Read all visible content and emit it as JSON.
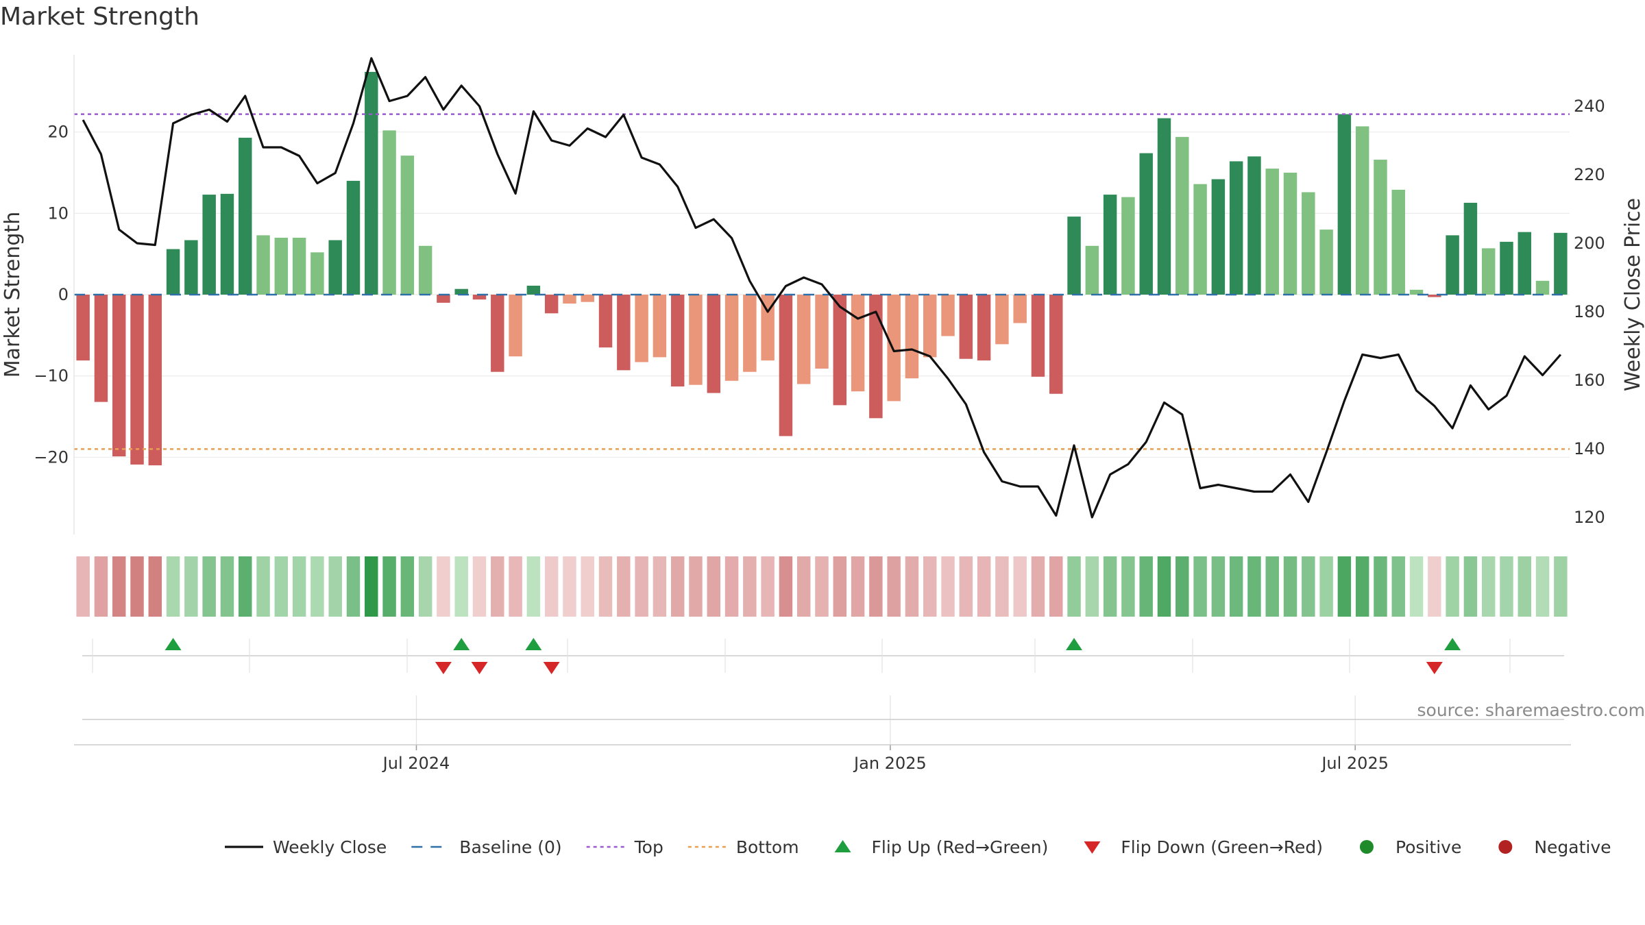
{
  "chart_data": {
    "type": "bar",
    "title": "Market Strength",
    "source": "source: sharemaestro.com",
    "ylabel_left": "Market Strength",
    "ylabel_right": "Weekly Close Price",
    "ylim_left": [
      -29.5,
      29.5
    ],
    "ylim_right": [
      115,
      255
    ],
    "left_ticks": [
      20,
      10,
      0,
      -10,
      -20
    ],
    "left_tick_labels": [
      "20",
      "10",
      "0",
      "−10",
      "−20"
    ],
    "right_ticks": [
      240,
      220,
      200,
      180,
      160,
      140,
      120
    ],
    "right_tick_labels": [
      "240",
      "220",
      "200",
      "180",
      "160",
      "140",
      "120"
    ],
    "x_tick_labels": [
      "Jul 2024",
      "Jan 2025",
      "Jul 2025"
    ],
    "x_tick_indices": [
      18.5,
      44.8,
      70.6
    ],
    "top_line": 22.2,
    "bottom_line": -19.0,
    "grid": true,
    "legend_position": "bottom",
    "legend": [
      {
        "label": "Weekly Close",
        "kind": "line",
        "color": "#111111"
      },
      {
        "label": "Baseline (0)",
        "kind": "dashed",
        "color": "#2e6fa8"
      },
      {
        "label": "Top",
        "kind": "dotted",
        "color": "#9b59d0"
      },
      {
        "label": "Bottom",
        "kind": "dotted",
        "color": "#e8a050"
      },
      {
        "label": "Flip Up (Red→Green)",
        "kind": "up",
        "color": "#1e9e3e"
      },
      {
        "label": "Flip Down (Green→Red)",
        "kind": "down",
        "color": "#d62728"
      },
      {
        "label": "Positive",
        "kind": "dot",
        "color": "#1f8a2a"
      },
      {
        "label": "Negative",
        "kind": "dot",
        "color": "#b22222"
      }
    ],
    "colors": {
      "pos_strong": "#2e8b57",
      "pos_light": "#80c080",
      "neg_strong": "#cd5c5c",
      "neg_light": "#e9967a",
      "close_line": "#111111",
      "baseline": "#2e6fa8",
      "top": "#9b59d0",
      "bottom": "#e8a050",
      "flip_up": "#1e9e3e",
      "flip_down": "#d62728"
    },
    "strength": [
      -8.1,
      -13.2,
      -19.9,
      -20.9,
      -21.0,
      5.6,
      6.7,
      12.3,
      12.4,
      19.3,
      7.3,
      7.0,
      7.0,
      5.2,
      6.7,
      14.0,
      27.4,
      20.2,
      17.1,
      6.0,
      -1.0,
      0.7,
      -0.6,
      -9.5,
      -7.6,
      1.1,
      -2.3,
      -1.1,
      -0.9,
      -6.5,
      -9.3,
      -8.3,
      -7.7,
      -11.3,
      -11.1,
      -12.1,
      -10.6,
      -9.5,
      -8.1,
      -17.4,
      -11.0,
      -9.1,
      -13.6,
      -11.9,
      -15.2,
      -13.1,
      -10.3,
      -7.7,
      -5.1,
      -7.9,
      -8.1,
      -6.1,
      -3.5,
      -10.1,
      -12.2,
      9.6,
      6.0,
      12.3,
      12.0,
      17.4,
      21.7,
      19.4,
      13.6,
      14.2,
      16.4,
      17.0,
      15.5,
      15.0,
      12.6,
      8.0,
      22.2,
      20.7,
      16.6,
      12.9,
      0.6,
      -0.3,
      7.3,
      11.3,
      5.7,
      6.5,
      7.7,
      1.7,
      7.6
    ],
    "strength_shade": [
      "s",
      "s",
      "s",
      "s",
      "s",
      "s",
      "s",
      "s",
      "s",
      "s",
      "l",
      "l",
      "l",
      "l",
      "s",
      "s",
      "s",
      "l",
      "l",
      "l",
      "s",
      "s",
      "s",
      "s",
      "l",
      "s",
      "s",
      "l",
      "l",
      "s",
      "s",
      "l",
      "l",
      "s",
      "l",
      "s",
      "l",
      "l",
      "l",
      "s",
      "l",
      "l",
      "s",
      "l",
      "s",
      "l",
      "l",
      "l",
      "l",
      "s",
      "s",
      "l",
      "l",
      "s",
      "s",
      "s",
      "l",
      "s",
      "l",
      "s",
      "s",
      "l",
      "l",
      "s",
      "s",
      "s",
      "l",
      "l",
      "l",
      "l",
      "s",
      "l",
      "l",
      "l",
      "l",
      "s",
      "s",
      "s",
      "l",
      "s",
      "s",
      "l",
      "s"
    ],
    "weekly_close": [
      236,
      226,
      204,
      200,
      199.5,
      235,
      237.5,
      239,
      235.5,
      243,
      228,
      228,
      225.5,
      217.5,
      220.5,
      235,
      254,
      241.5,
      243,
      248.5,
      239,
      246,
      240,
      226,
      214.5,
      238.5,
      230,
      228.5,
      233.5,
      231,
      237.5,
      225,
      223,
      216.5,
      204.5,
      207,
      201.5,
      189,
      180,
      187.5,
      190,
      188,
      181.5,
      178,
      180,
      168.5,
      169,
      167,
      160.5,
      153,
      139,
      130.5,
      129,
      129,
      120.5,
      141,
      120,
      132.5,
      135.5,
      142,
      153.5,
      150,
      128.5,
      129.5,
      128.5,
      127.5,
      127.5,
      132.5,
      124.5,
      139,
      154,
      167.5,
      166.5,
      167.5,
      157,
      152.5,
      146,
      158.5,
      151.5,
      155.5,
      167,
      161.5,
      167.5
    ],
    "heat_strip": [
      -8,
      -13,
      -20,
      -21,
      -21,
      5.6,
      6.7,
      12.3,
      12.4,
      19.3,
      7.3,
      7,
      7,
      5.2,
      6.7,
      14,
      27.4,
      20.2,
      17.1,
      6,
      -2,
      2,
      -2,
      -9.5,
      -7.6,
      2,
      -3,
      -2,
      -2,
      -6.5,
      -9.3,
      -8.3,
      -7.7,
      -11.3,
      -11.1,
      -12.1,
      -10.6,
      -9.5,
      -8.1,
      -17.4,
      -11,
      -9.1,
      -13.6,
      -11.9,
      -15.2,
      -13.1,
      -10.3,
      -7.7,
      -5.1,
      -7.9,
      -8.1,
      -6.1,
      -3.5,
      -10.1,
      -12.2,
      9.6,
      6,
      12.3,
      12,
      17.4,
      21.7,
      19.4,
      13.6,
      14.2,
      16.4,
      17,
      15.5,
      15,
      12.6,
      8,
      22.2,
      20.7,
      16.6,
      12.9,
      2,
      -2,
      7.3,
      11.3,
      5.7,
      6.5,
      7.7,
      4,
      7.6
    ],
    "flip_up_indices": [
      5,
      21,
      25,
      55,
      76
    ],
    "flip_down_indices": [
      20,
      22,
      26,
      75
    ]
  }
}
